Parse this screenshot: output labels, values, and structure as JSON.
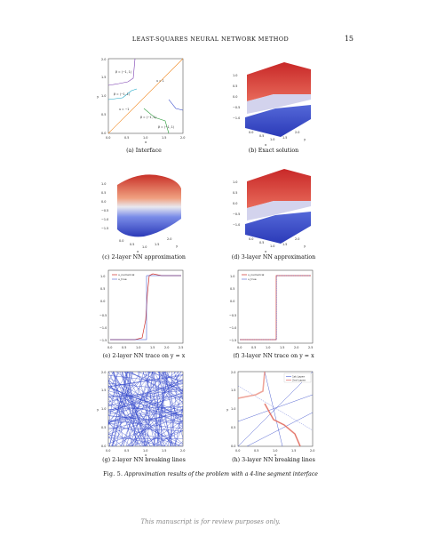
{
  "header": {
    "running_head": "LEAST-SQUARES NEURAL NETWORK METHOD",
    "page_number": "15"
  },
  "subfigures": {
    "a": {
      "caption": "(a) Interface",
      "region_labels": [
        "β = (−1, 1)",
        "β = (−1, 1)",
        "β = (−1, 1)",
        "u = 1",
        "u = −1",
        "β = (−1, 1)"
      ],
      "xticks": [
        "0.0",
        "0.5",
        "1.0",
        "1.5",
        "2.0"
      ],
      "yticks": [
        "0.0",
        "0.5",
        "1.0",
        "1.5",
        "2.0"
      ],
      "xlabel": "x",
      "ylabel": "y"
    },
    "b": {
      "caption": "(b) Exact solution",
      "zticks": [
        "1.0",
        "0.5",
        "0.0",
        "−0.5",
        "−1.0"
      ],
      "xticks": [
        "0.0",
        "0.5",
        "1.0",
        "1.5",
        "2.0"
      ],
      "xlabel": "x",
      "ylabel": "y"
    },
    "c": {
      "caption": "(c) 2-layer NN approximation",
      "zticks": [
        "1.0",
        "0.5",
        "0.0",
        "−0.5",
        "−1.0",
        "−1.5"
      ],
      "xticks": [
        "0.0",
        "0.5",
        "1.0",
        "1.5",
        "2.0"
      ],
      "xlabel": "x",
      "ylabel": "y"
    },
    "d": {
      "caption": "(d) 3-layer NN approximation",
      "zticks": [
        "1.0",
        "0.5",
        "0.0",
        "−0.5",
        "−1.0"
      ],
      "xticks": [
        "0.0",
        "0.5",
        "1.0",
        "1.5",
        "2.0"
      ],
      "xlabel": "x",
      "ylabel": "y"
    },
    "e": {
      "caption": "(e) 2-layer NN trace on y = x",
      "legend": [
        "u_numerical",
        "u_true"
      ],
      "xticks": [
        "0.0",
        "0.5",
        "1.0",
        "1.5",
        "2.0",
        "2.5"
      ],
      "yticks": [
        "1.0",
        "0.5",
        "0.0",
        "−0.5",
        "−1.0",
        "−1.5"
      ]
    },
    "f": {
      "caption": "(f) 3-layer NN trace on y = x",
      "legend": [
        "u_numerical",
        "u_true"
      ],
      "xticks": [
        "0.0",
        "0.5",
        "1.0",
        "1.5",
        "2.0",
        "2.5"
      ],
      "yticks": [
        "1.0",
        "0.5",
        "0.0",
        "−0.5",
        "−1.0",
        "−1.5"
      ]
    },
    "g": {
      "caption": "(g) 2-layer NN breaking lines",
      "xticks": [
        "0.0",
        "0.5",
        "1.0",
        "1.5",
        "2.0"
      ],
      "yticks": [
        "0.0",
        "0.5",
        "1.0",
        "1.5",
        "2.0"
      ],
      "xlabel": "x",
      "ylabel": "y"
    },
    "h": {
      "caption": "(h) 3-layer NN breaking lines",
      "legend": [
        "1st Layer",
        "2nd Layer"
      ],
      "xticks": [
        "0.0",
        "0.5",
        "1.0",
        "1.5",
        "2.0"
      ],
      "yticks": [
        "0.0",
        "0.5",
        "1.0",
        "1.5",
        "2.0"
      ],
      "xlabel": "x",
      "ylabel": "y"
    }
  },
  "figure_caption": {
    "label": "Fig. 5.",
    "text": "Approximation results of the problem with a 4-line segment interface"
  },
  "footer": "This manuscript is for review purposes only.",
  "colors": {
    "red": "#d03028",
    "blue": "#2b40c8",
    "orange": "#f08a24",
    "green": "#2a9a3a",
    "purple": "#7b3fb0",
    "cyan": "#19a6c6"
  }
}
